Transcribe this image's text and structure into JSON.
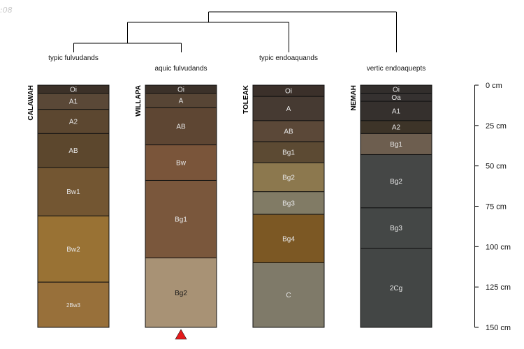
{
  "corner_label": ":08",
  "depth_axis": {
    "unit": "cm",
    "max_depth": 150,
    "ticks": [
      {
        "depth": 0,
        "label": "0  cm"
      },
      {
        "depth": 25,
        "label": "25  cm"
      },
      {
        "depth": 50,
        "label": "50  cm"
      },
      {
        "depth": 75,
        "label": "75  cm"
      },
      {
        "depth": 100,
        "label": "100  cm"
      },
      {
        "depth": 125,
        "label": "125  cm"
      },
      {
        "depth": 150,
        "label": "150  cm"
      }
    ]
  },
  "profiles": [
    {
      "name": "CALAWAH",
      "taxon": "typic fulvudands",
      "horizons": [
        {
          "name": "Oi",
          "top": 0,
          "bottom": 5,
          "color": "#3c3128",
          "text_color": "#e6e6e6"
        },
        {
          "name": "A1",
          "top": 5,
          "bottom": 15,
          "color": "#5a4837",
          "text_color": "#e6e6e6"
        },
        {
          "name": "A2",
          "top": 15,
          "bottom": 30,
          "color": "#5c4730",
          "text_color": "#e6e6e6"
        },
        {
          "name": "AB",
          "top": 30,
          "bottom": 51,
          "color": "#5c472d",
          "text_color": "#e6e6e6"
        },
        {
          "name": "Bw1",
          "top": 51,
          "bottom": 81,
          "color": "#735632",
          "text_color": "#e6e6e6"
        },
        {
          "name": "Bw2",
          "top": 81,
          "bottom": 122,
          "color": "#997234",
          "text_color": "#e6e6e6"
        },
        {
          "name": "2Bw3",
          "top": 122,
          "bottom": 150,
          "color": "#98703a",
          "text_color": "#e6e6e6"
        }
      ]
    },
    {
      "name": "WILLAPA",
      "taxon": "aquic fulvudands",
      "has_marker": true,
      "horizons": [
        {
          "name": "Oi",
          "top": 0,
          "bottom": 5,
          "color": "#3b3129",
          "text_color": "#e6e6e6"
        },
        {
          "name": "A",
          "top": 5,
          "bottom": 14,
          "color": "#574535",
          "text_color": "#e6e6e6"
        },
        {
          "name": "AB",
          "top": 14,
          "bottom": 37,
          "color": "#5e4633",
          "text_color": "#e6e6e6"
        },
        {
          "name": "Bw",
          "top": 37,
          "bottom": 59,
          "color": "#7a553a",
          "text_color": "#e6e6e6"
        },
        {
          "name": "Bg1",
          "top": 59,
          "bottom": 107,
          "color": "#7a573c",
          "text_color": "#e6e6e6"
        },
        {
          "name": "Bg2",
          "top": 107,
          "bottom": 150,
          "color": "#a89275",
          "text_color": "#1a1a1a"
        }
      ]
    },
    {
      "name": "TOLEAK",
      "taxon": "typic endoaquands",
      "horizons": [
        {
          "name": "Oi",
          "top": 0,
          "bottom": 7,
          "color": "#3b302a",
          "text_color": "#e6e6e6"
        },
        {
          "name": "A",
          "top": 7,
          "bottom": 22,
          "color": "#463a32",
          "text_color": "#e6e6e6"
        },
        {
          "name": "AB",
          "top": 22,
          "bottom": 35,
          "color": "#5b4838",
          "text_color": "#e6e6e6"
        },
        {
          "name": "Bg1",
          "top": 35,
          "bottom": 48,
          "color": "#5c4a33",
          "text_color": "#e6e6e6"
        },
        {
          "name": "Bg2",
          "top": 48,
          "bottom": 66,
          "color": "#8c784e",
          "text_color": "#e6e6e6"
        },
        {
          "name": "Bg3",
          "top": 66,
          "bottom": 80,
          "color": "#817b65",
          "text_color": "#e6e6e6"
        },
        {
          "name": "Bg4",
          "top": 80,
          "bottom": 110,
          "color": "#7c5824",
          "text_color": "#e6e6e6"
        },
        {
          "name": "C",
          "top": 110,
          "bottom": 150,
          "color": "#7f7a69",
          "text_color": "#e6e6e6"
        }
      ]
    },
    {
      "name": "NEMAH",
      "taxon": "vertic endoaquepts",
      "horizons": [
        {
          "name": "Oi",
          "top": 0,
          "bottom": 5,
          "color": "#322e2c",
          "text_color": "#e6e6e6"
        },
        {
          "name": "Oa",
          "top": 5,
          "bottom": 10,
          "color": "#353130",
          "text_color": "#e6e6e6"
        },
        {
          "name": "A1",
          "top": 10,
          "bottom": 22,
          "color": "#35302d",
          "text_color": "#e6e6e6"
        },
        {
          "name": "A2",
          "top": 22,
          "bottom": 30,
          "color": "#3d3428",
          "text_color": "#e6e6e6"
        },
        {
          "name": "Bg1",
          "top": 30,
          "bottom": 43,
          "color": "#6d5e4f",
          "text_color": "#e6e6e6"
        },
        {
          "name": "Bg2",
          "top": 43,
          "bottom": 76,
          "color": "#454746",
          "text_color": "#e6e6e6"
        },
        {
          "name": "Bg3",
          "top": 76,
          "bottom": 101,
          "color": "#444746",
          "text_color": "#e6e6e6"
        },
        {
          "name": "2Cg",
          "top": 101,
          "bottom": 150,
          "color": "#434645",
          "text_color": "#e6e6e6"
        }
      ]
    }
  ],
  "marker_color": "#e41a1c"
}
